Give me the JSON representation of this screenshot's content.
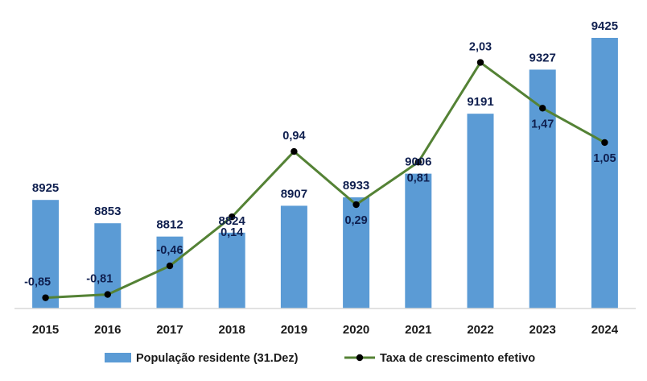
{
  "chart_data": {
    "type": "bar",
    "categories": [
      "2015",
      "2016",
      "2017",
      "2018",
      "2019",
      "2020",
      "2021",
      "2022",
      "2023",
      "2024"
    ],
    "series": [
      {
        "name": "População residente (31.Dez)",
        "type": "bar",
        "axis": "left",
        "values": [
          8925,
          8853,
          8812,
          8824,
          8907,
          8933,
          9006,
          9191,
          9327,
          9425
        ],
        "labels": [
          "8925",
          "8853",
          "8812",
          "8824",
          "8907",
          "8933",
          "9006",
          "9191",
          "9327",
          "9425"
        ],
        "color": "#5b9bd5"
      },
      {
        "name": "Taxa de crescimento efetivo",
        "type": "line",
        "axis": "right",
        "values": [
          -0.85,
          -0.81,
          -0.46,
          0.14,
          0.94,
          0.29,
          0.81,
          2.03,
          1.47,
          1.05
        ],
        "labels": [
          "-0,85",
          "-0,81",
          "-0,46",
          "0,14",
          "0,94",
          "0,29",
          "0,81",
          "2,03",
          "1,47",
          "1,05"
        ],
        "color": "#548235",
        "marker_color": "#000000"
      }
    ],
    "bar_axis_range": [
      8590,
      9430
    ],
    "line_axis_range": [
      -1.1,
      2.4
    ],
    "grid": false,
    "legend_position": "bottom"
  }
}
